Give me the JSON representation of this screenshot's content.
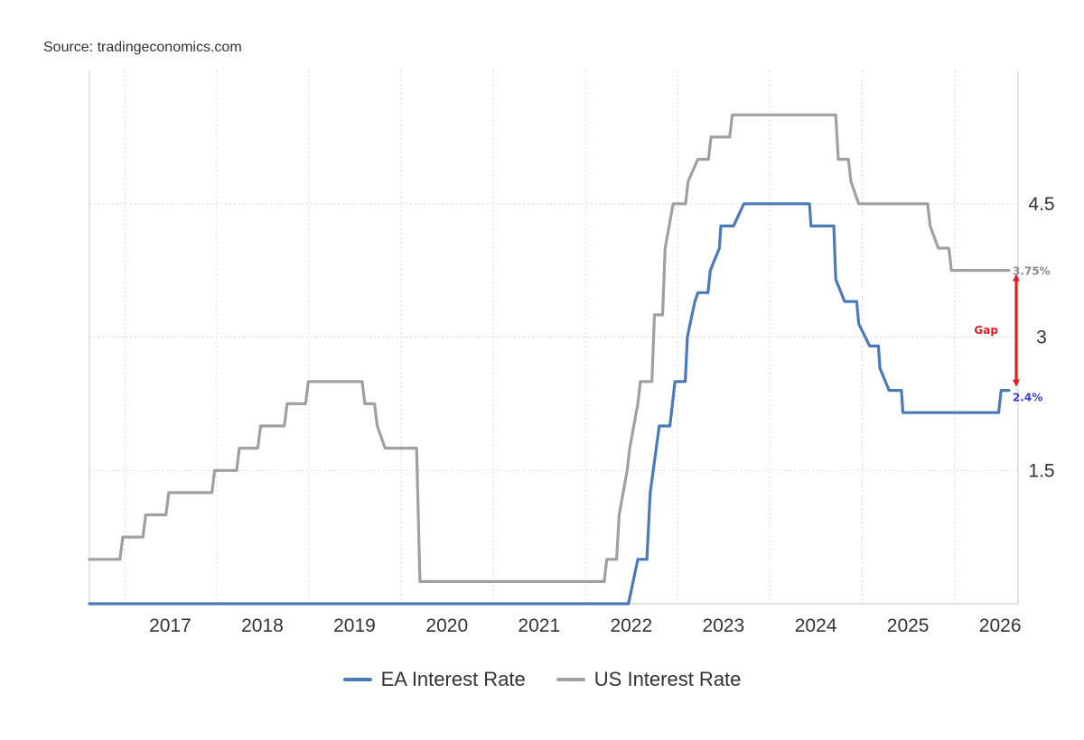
{
  "source": "Source: tradingeconomics.com",
  "chart_data": {
    "type": "line",
    "title": "",
    "xlabel": "",
    "ylabel": "",
    "x_type": "date",
    "xlim": [
      "2016-08-15",
      "2026-09-10"
    ],
    "ylim": [
      0,
      6
    ],
    "x_ticks": [
      "2017",
      "2018",
      "2019",
      "2020",
      "2021",
      "2022",
      "2023",
      "2024",
      "2025",
      "2026"
    ],
    "y_ticks": [
      {
        "value": 1.5,
        "label": "1.5"
      },
      {
        "value": 3,
        "label": "3"
      },
      {
        "value": 4.5,
        "label": "4.5"
      }
    ],
    "grid": true,
    "legend": "bottom-center",
    "series": [
      {
        "name": "EA Interest Rate",
        "color": "#4a7ab8",
        "end_label": "2.4%",
        "end_label_color": "#3c3cd6",
        "points": [
          [
            "2016-08-15",
            0
          ],
          [
            "2022-06-20",
            0
          ],
          [
            "2022-07-27",
            0.5
          ],
          [
            "2022-09-01",
            0.5
          ],
          [
            "2022-09-14",
            1.25
          ],
          [
            "2022-10-20",
            2.0
          ],
          [
            "2022-11-02",
            2.0
          ],
          [
            "2022-12-01",
            2.0
          ],
          [
            "2022-12-21",
            2.5
          ],
          [
            "2023-01-31",
            2.5
          ],
          [
            "2023-02-08",
            3.0
          ],
          [
            "2023-03-10",
            3.4
          ],
          [
            "2023-03-22",
            3.5
          ],
          [
            "2023-05-01",
            3.5
          ],
          [
            "2023-05-10",
            3.75
          ],
          [
            "2023-06-15",
            4.0
          ],
          [
            "2023-06-21",
            4.25
          ],
          [
            "2023-08-10",
            4.25
          ],
          [
            "2023-09-20",
            4.5
          ],
          [
            "2024-06-06",
            4.5
          ],
          [
            "2024-06-12",
            4.25
          ],
          [
            "2024-09-10",
            4.25
          ],
          [
            "2024-09-18",
            3.65
          ],
          [
            "2024-10-23",
            3.4
          ],
          [
            "2024-12-10",
            3.4
          ],
          [
            "2024-12-18",
            3.15
          ],
          [
            "2025-01-30",
            2.9
          ],
          [
            "2025-03-06",
            2.9
          ],
          [
            "2025-03-12",
            2.65
          ],
          [
            "2025-04-17",
            2.4
          ],
          [
            "2025-06-05",
            2.4
          ],
          [
            "2025-06-11",
            2.15
          ],
          [
            "2026-06-25",
            2.15
          ],
          [
            "2026-07-05",
            2.4
          ],
          [
            "2026-08-05",
            2.4
          ]
        ]
      },
      {
        "name": "US Interest Rate",
        "color": "#a0a0a0",
        "end_label": "3.75%",
        "end_label_color": "#8c8c8c",
        "points": [
          [
            "2016-08-15",
            0.5
          ],
          [
            "2016-12-14",
            0.5
          ],
          [
            "2016-12-25",
            0.75
          ],
          [
            "2017-03-15",
            0.75
          ],
          [
            "2017-03-26",
            1.0
          ],
          [
            "2017-06-14",
            1.0
          ],
          [
            "2017-06-25",
            1.25
          ],
          [
            "2017-12-13",
            1.25
          ],
          [
            "2017-12-24",
            1.5
          ],
          [
            "2018-03-21",
            1.5
          ],
          [
            "2018-04-01",
            1.75
          ],
          [
            "2018-06-13",
            1.75
          ],
          [
            "2018-06-24",
            2.0
          ],
          [
            "2018-09-26",
            2.0
          ],
          [
            "2018-10-07",
            2.25
          ],
          [
            "2018-12-19",
            2.25
          ],
          [
            "2018-12-30",
            2.5
          ],
          [
            "2019-07-31",
            2.5
          ],
          [
            "2019-08-11",
            2.25
          ],
          [
            "2019-09-18",
            2.25
          ],
          [
            "2019-09-29",
            2.0
          ],
          [
            "2019-10-30",
            1.75
          ],
          [
            "2020-03-03",
            1.75
          ],
          [
            "2020-03-16",
            0.25
          ],
          [
            "2022-03-16",
            0.25
          ],
          [
            "2022-03-26",
            0.5
          ],
          [
            "2022-05-04",
            0.5
          ],
          [
            "2022-05-14",
            1.0
          ],
          [
            "2022-06-15",
            1.5
          ],
          [
            "2022-06-25",
            1.75
          ],
          [
            "2022-07-27",
            2.25
          ],
          [
            "2022-08-06",
            2.5
          ],
          [
            "2022-09-21",
            2.5
          ],
          [
            "2022-10-01",
            3.25
          ],
          [
            "2022-11-02",
            3.25
          ],
          [
            "2022-11-12",
            4.0
          ],
          [
            "2022-12-14",
            4.5
          ],
          [
            "2023-02-01",
            4.5
          ],
          [
            "2023-02-11",
            4.75
          ],
          [
            "2023-03-22",
            5.0
          ],
          [
            "2023-05-03",
            5.0
          ],
          [
            "2023-05-13",
            5.25
          ],
          [
            "2023-07-26",
            5.25
          ],
          [
            "2023-08-05",
            5.5
          ],
          [
            "2024-09-18",
            5.5
          ],
          [
            "2024-09-28",
            5.0
          ],
          [
            "2024-11-07",
            5.0
          ],
          [
            "2024-11-17",
            4.75
          ],
          [
            "2024-12-18",
            4.5
          ],
          [
            "2025-09-17",
            4.5
          ],
          [
            "2025-09-27",
            4.25
          ],
          [
            "2025-10-29",
            4.0
          ],
          [
            "2025-12-10",
            4.0
          ],
          [
            "2025-12-20",
            3.75
          ],
          [
            "2026-08-05",
            3.75
          ]
        ]
      }
    ],
    "annotations": [
      {
        "type": "double-arrow",
        "label": "Gap",
        "color": "#e11b22",
        "date": "2026-08-05",
        "from": 2.4,
        "to": 3.75
      }
    ]
  }
}
